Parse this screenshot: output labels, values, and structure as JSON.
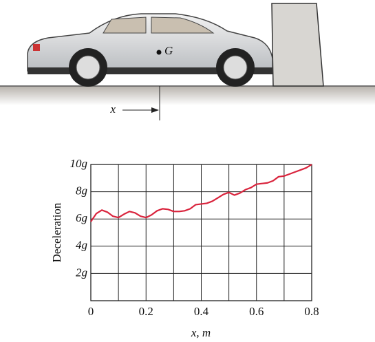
{
  "figure": {
    "point_label": "G",
    "distance_label": "x"
  },
  "chart_data": {
    "type": "line",
    "ylabel": "Deceleration",
    "xlabel": "x, m",
    "x": [
      0,
      0.02,
      0.04,
      0.06,
      0.08,
      0.1,
      0.12,
      0.14,
      0.16,
      0.18,
      0.2,
      0.22,
      0.24,
      0.26,
      0.28,
      0.3,
      0.32,
      0.34,
      0.36,
      0.38,
      0.4,
      0.42,
      0.44,
      0.46,
      0.48,
      0.5,
      0.52,
      0.54,
      0.56,
      0.58,
      0.6,
      0.62,
      0.64,
      0.66,
      0.68,
      0.7,
      0.72,
      0.74,
      0.76,
      0.78,
      0.8
    ],
    "series": [
      {
        "color": "#d9233c",
        "values": [
          5.8,
          6.4,
          6.65,
          6.5,
          6.2,
          6.1,
          6.35,
          6.55,
          6.45,
          6.2,
          6.1,
          6.3,
          6.6,
          6.75,
          6.7,
          6.55,
          6.55,
          6.6,
          6.75,
          7.05,
          7.1,
          7.15,
          7.3,
          7.55,
          7.8,
          7.95,
          7.75,
          7.9,
          8.15,
          8.3,
          8.55,
          8.6,
          8.65,
          8.8,
          9.1,
          9.15,
          9.3,
          9.45,
          9.6,
          9.75,
          10
        ]
      }
    ],
    "xlim": [
      0,
      0.8
    ],
    "xticks": [
      0,
      0.2,
      0.4,
      0.6,
      0.8
    ],
    "xminor": [
      0.1,
      0.3,
      0.5,
      0.7
    ],
    "ylim": [
      0,
      10
    ],
    "yticks": [
      {
        "value": 2,
        "label": "2g"
      },
      {
        "value": 4,
        "label": "4g"
      },
      {
        "value": 6,
        "label": "6g"
      },
      {
        "value": 8,
        "label": "8g"
      },
      {
        "value": 10,
        "label": "10g"
      }
    ],
    "grid": true
  }
}
